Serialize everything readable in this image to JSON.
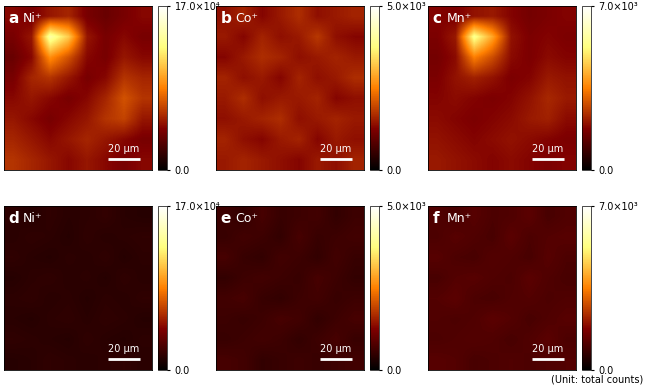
{
  "figure": {
    "note": "(Unit: total counts)"
  },
  "chart_data": [
    {
      "type": "heatmap",
      "tick_labels": false,
      "annotations": [
        {
          "text": "a"
        },
        {
          "text": "Ni⁺"
        },
        {
          "text": "20 µm"
        }
      ],
      "colorbar": {
        "range": [
          0,
          170000
        ],
        "ticks": [
          {
            "value": 0,
            "label": "0.0"
          },
          {
            "value": 170000,
            "label": "17.0×10⁴"
          }
        ]
      },
      "cells": [
        [
          45000,
          40000,
          50000,
          55000,
          40000,
          35000,
          40000,
          45000
        ],
        [
          40000,
          50000,
          140000,
          110000,
          50000,
          40000,
          45000,
          40000
        ],
        [
          35000,
          45000,
          90000,
          70000,
          45000,
          40000,
          50000,
          45000
        ],
        [
          40000,
          55000,
          60000,
          50000,
          40000,
          45000,
          60000,
          55000
        ],
        [
          45000,
          50000,
          45000,
          40000,
          45000,
          55000,
          70000,
          60000
        ],
        [
          50000,
          45000,
          40000,
          45000,
          50000,
          60000,
          65000,
          50000
        ],
        [
          55000,
          50000,
          45000,
          50000,
          55000,
          50000,
          45000,
          40000
        ],
        [
          60000,
          55000,
          50000,
          45000,
          50000,
          45000,
          40000,
          45000
        ]
      ]
    },
    {
      "type": "heatmap",
      "tick_labels": false,
      "annotations": [
        {
          "text": "b"
        },
        {
          "text": "Co⁺"
        },
        {
          "text": "20 µm"
        }
      ],
      "colorbar": {
        "range": [
          0,
          5000
        ],
        "ticks": [
          {
            "value": 0,
            "label": "0.0"
          },
          {
            "value": 5000,
            "label": "5.0×10³"
          }
        ]
      },
      "cells": [
        [
          1400,
          1600,
          1300,
          1500,
          1700,
          1400,
          1500,
          1600
        ],
        [
          1500,
          1300,
          1600,
          1400,
          1500,
          1800,
          1400,
          1300
        ],
        [
          1300,
          1500,
          1700,
          1600,
          1400,
          1500,
          1600,
          1500
        ],
        [
          1600,
          1400,
          1500,
          1300,
          1600,
          1400,
          1500,
          1700
        ],
        [
          1500,
          1700,
          1400,
          1500,
          1500,
          1600,
          1300,
          1400
        ],
        [
          1400,
          1500,
          1600,
          1700,
          1400,
          1500,
          1600,
          1500
        ],
        [
          1600,
          1400,
          1300,
          1500,
          1600,
          1300,
          1500,
          1400
        ],
        [
          1500,
          1600,
          1500,
          1400,
          1300,
          1500,
          1400,
          1600
        ]
      ]
    },
    {
      "type": "heatmap",
      "tick_labels": false,
      "annotations": [
        {
          "text": "c"
        },
        {
          "text": "Mn⁺"
        },
        {
          "text": "20 µm"
        }
      ],
      "colorbar": {
        "range": [
          0,
          7000
        ],
        "ticks": [
          {
            "value": 0,
            "label": "0.0"
          },
          {
            "value": 7000,
            "label": "7.0×10³"
          }
        ]
      },
      "cells": [
        [
          1800,
          1700,
          2000,
          2100,
          1800,
          1600,
          1700,
          1800
        ],
        [
          1700,
          2100,
          5500,
          4000,
          2000,
          1700,
          1800,
          1700
        ],
        [
          1600,
          1900,
          3500,
          2800,
          1900,
          1700,
          1900,
          1800
        ],
        [
          1700,
          2000,
          2200,
          2000,
          1700,
          1800,
          2100,
          2000
        ],
        [
          1800,
          1900,
          1800,
          1700,
          1800,
          2000,
          2300,
          2100
        ],
        [
          1900,
          1800,
          1700,
          1800,
          1900,
          2100,
          2200,
          1900
        ],
        [
          2000,
          1900,
          1800,
          1900,
          2000,
          1900,
          1800,
          1700
        ],
        [
          2100,
          2000,
          1900,
          1800,
          1900,
          1800,
          1700,
          1800
        ]
      ]
    },
    {
      "type": "heatmap",
      "tick_labels": false,
      "annotations": [
        {
          "text": "d"
        },
        {
          "text": "Ni⁺"
        },
        {
          "text": "20 µm"
        }
      ],
      "colorbar": {
        "range": [
          0,
          170000
        ],
        "ticks": [
          {
            "value": 0,
            "label": "0.0"
          },
          {
            "value": 170000,
            "label": "17.0×10⁴"
          }
        ]
      },
      "cells": [
        [
          15000,
          13000,
          16000,
          14000,
          15000,
          17000,
          14000,
          13000
        ],
        [
          14000,
          16000,
          15000,
          13000,
          16000,
          14000,
          15000,
          16000
        ],
        [
          16000,
          14000,
          13000,
          15000,
          14000,
          16000,
          13000,
          15000
        ],
        [
          13000,
          15000,
          16000,
          14000,
          15000,
          13000,
          16000,
          14000
        ],
        [
          15000,
          16000,
          14000,
          15000,
          13000,
          15000,
          14000,
          16000
        ],
        [
          14000,
          13000,
          15000,
          16000,
          14000,
          16000,
          15000,
          13000
        ],
        [
          16000,
          15000,
          14000,
          13000,
          16000,
          14000,
          13000,
          15000
        ],
        [
          13000,
          14000,
          16000,
          15000,
          14000,
          15000,
          16000,
          14000
        ]
      ]
    },
    {
      "type": "heatmap",
      "tick_labels": false,
      "annotations": [
        {
          "text": "e"
        },
        {
          "text": "Co⁺"
        },
        {
          "text": "20 µm"
        }
      ],
      "colorbar": {
        "range": [
          0,
          5000
        ],
        "ticks": [
          {
            "value": 0,
            "label": "0.0"
          },
          {
            "value": 5000,
            "label": "5.0×10³"
          }
        ]
      },
      "cells": [
        [
          600,
          500,
          700,
          550,
          600,
          650,
          500,
          600
        ],
        [
          550,
          650,
          600,
          500,
          700,
          550,
          600,
          650
        ],
        [
          700,
          550,
          500,
          650,
          600,
          500,
          650,
          550
        ],
        [
          500,
          600,
          650,
          600,
          550,
          700,
          600,
          500
        ],
        [
          650,
          700,
          550,
          500,
          600,
          650,
          550,
          600
        ],
        [
          600,
          550,
          600,
          700,
          650,
          500,
          600,
          700
        ],
        [
          550,
          600,
          650,
          600,
          500,
          600,
          700,
          550
        ],
        [
          700,
          650,
          500,
          550,
          600,
          550,
          600,
          650
        ]
      ]
    },
    {
      "type": "heatmap",
      "tick_labels": false,
      "annotations": [
        {
          "text": "f"
        },
        {
          "text": "Mn⁺"
        },
        {
          "text": "20 µm"
        }
      ],
      "colorbar": {
        "range": [
          0,
          7000
        ],
        "ticks": [
          {
            "value": 0,
            "label": "0.0"
          },
          {
            "value": 7000,
            "label": "7.0×10³"
          }
        ]
      },
      "cells": [
        [
          1100,
          1000,
          1200,
          1050,
          1100,
          1250,
          1000,
          1100
        ],
        [
          1050,
          1200,
          1100,
          1000,
          1250,
          1050,
          1150,
          1200
        ],
        [
          1200,
          1050,
          1000,
          1150,
          1100,
          1000,
          1200,
          1050
        ],
        [
          1000,
          1150,
          1200,
          1100,
          1050,
          1250,
          1100,
          1000
        ],
        [
          1150,
          1250,
          1050,
          1000,
          1100,
          1150,
          1050,
          1100
        ],
        [
          1100,
          1050,
          1100,
          1250,
          1150,
          1000,
          1100,
          1200
        ],
        [
          1050,
          1100,
          1150,
          1100,
          1000,
          1100,
          1250,
          1050
        ],
        [
          1200,
          1150,
          1000,
          1050,
          1100,
          1050,
          1100,
          1150
        ]
      ]
    }
  ]
}
